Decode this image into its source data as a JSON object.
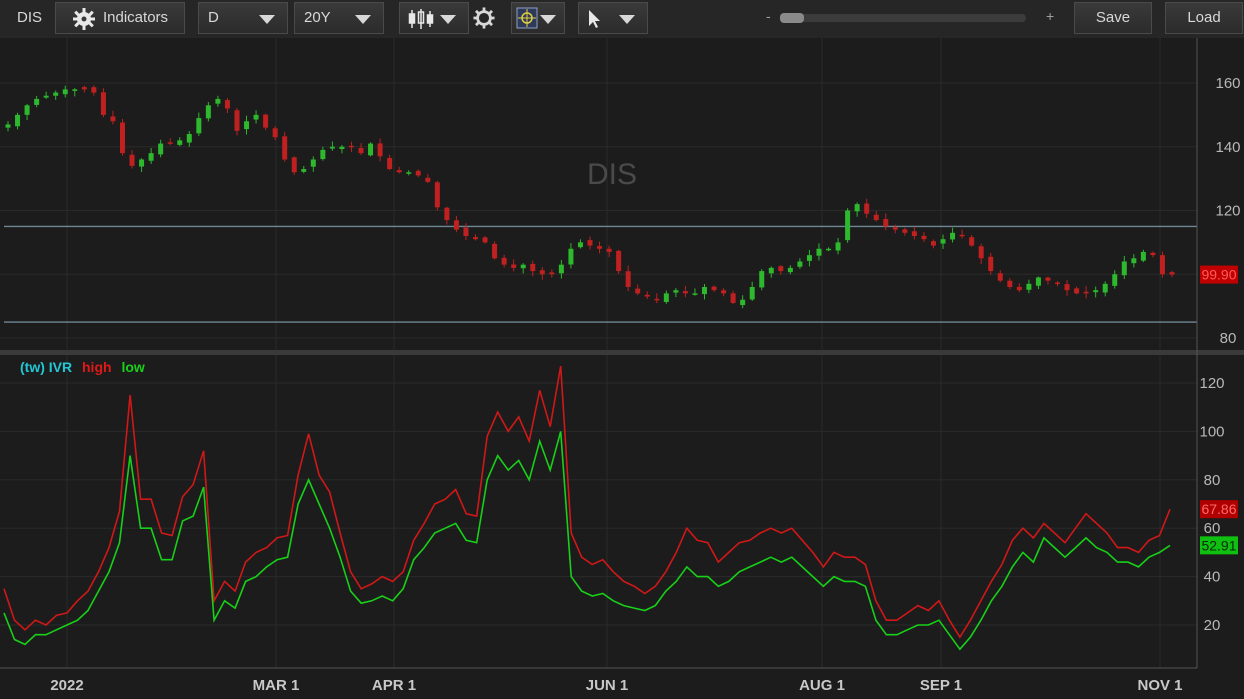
{
  "toolbar": {
    "symbol": "DIS",
    "indicators_label": "Indicators",
    "period": "D",
    "range": "20Y",
    "zoom_minus": "-",
    "zoom_plus": "+",
    "save_label": "Save",
    "load_label": "Load",
    "zoom_level": 0.03
  },
  "colors": {
    "background": "#1c1c1c",
    "up_candle": "#2db82d",
    "down_candle": "#c02020",
    "ivr_label": "#22c7d6",
    "high_line": "#d01818",
    "low_line": "#18d018",
    "hline": "#6f8793"
  },
  "chart_data": [
    {
      "type": "candlestick",
      "watermark": "DIS",
      "y_ticks": [
        80,
        100,
        120,
        140,
        160
      ],
      "y_tick_labels": [
        "80",
        "",
        "120",
        "140",
        "160"
      ],
      "ylim": [
        77,
        168
      ],
      "last_price": 99.9,
      "last_price_label": "99.90",
      "horizontal_lines": [
        115,
        85
      ],
      "x_ticks": [
        "2022",
        "MAR 1",
        "APR 1",
        "JUN 1",
        "AUG 1",
        "SEP 1",
        "NOV 1"
      ],
      "close_series": [
        147,
        150,
        153,
        155,
        156,
        157,
        158,
        158,
        158,
        157,
        150,
        148,
        138,
        134,
        136,
        138,
        141,
        141,
        142,
        144,
        149,
        153,
        155,
        152,
        145,
        148,
        150,
        146,
        143,
        136,
        132,
        133,
        136,
        139,
        140,
        140,
        140,
        138,
        141,
        137,
        133,
        132,
        132,
        131,
        129,
        121,
        117,
        114,
        112,
        111,
        110,
        105,
        103,
        102,
        103,
        101,
        100,
        100,
        103,
        108,
        110,
        109,
        108,
        107,
        101,
        96,
        94,
        93,
        92,
        94,
        95,
        94,
        94,
        96,
        95,
        94,
        91,
        92,
        96,
        101,
        102,
        101,
        102,
        104,
        106,
        108,
        108,
        110,
        120,
        122,
        119,
        117,
        115,
        114,
        113,
        112,
        111,
        109,
        111,
        113,
        112,
        109,
        105,
        101,
        98,
        96,
        95,
        97,
        99,
        98,
        97,
        95,
        94,
        94,
        95,
        97,
        100,
        104,
        105,
        107,
        106,
        100,
        99.9
      ],
      "days_per_point": 2.5
    },
    {
      "type": "line",
      "legend": [
        "(tw) IVR",
        "high",
        "low"
      ],
      "y_ticks": [
        20,
        40,
        60,
        80,
        100,
        120
      ],
      "ylim": [
        3,
        130
      ],
      "series": [
        {
          "name": "high",
          "last_label": "67.86",
          "values": [
            35,
            22,
            18,
            22,
            20,
            24,
            25,
            30,
            34,
            42,
            52,
            67,
            115,
            72,
            72,
            58,
            57,
            73,
            78,
            92,
            30,
            38,
            34,
            46,
            50,
            52,
            56,
            57,
            82,
            99,
            82,
            75,
            58,
            42,
            35,
            37,
            40,
            38,
            42,
            55,
            62,
            70,
            72,
            76,
            66,
            65,
            98,
            108,
            100,
            106,
            96,
            117,
            102,
            127,
            58,
            48,
            45,
            47,
            42,
            38,
            36,
            33,
            36,
            42,
            50,
            60,
            55,
            54,
            46,
            50,
            54,
            55,
            58,
            60,
            58,
            60,
            55,
            50,
            44,
            50,
            48,
            48,
            45,
            30,
            22,
            22,
            25,
            28,
            26,
            30,
            22,
            15,
            22,
            30,
            38,
            45,
            55,
            60,
            56,
            62,
            58,
            54,
            60,
            66,
            62,
            58,
            52,
            52,
            50,
            55,
            57,
            67.86
          ]
        },
        {
          "name": "low",
          "last_label": "52.91",
          "values": [
            25,
            14,
            12,
            16,
            16,
            18,
            20,
            22,
            26,
            34,
            42,
            54,
            90,
            60,
            60,
            47,
            47,
            63,
            65,
            77,
            22,
            30,
            27,
            38,
            40,
            44,
            47,
            48,
            70,
            80,
            70,
            60,
            48,
            34,
            29,
            30,
            32,
            30,
            35,
            47,
            52,
            58,
            60,
            62,
            55,
            54,
            80,
            90,
            84,
            88,
            80,
            96,
            84,
            100,
            40,
            34,
            32,
            33,
            30,
            28,
            27,
            26,
            28,
            34,
            38,
            44,
            40,
            40,
            36,
            38,
            42,
            44,
            46,
            48,
            46,
            48,
            44,
            40,
            36,
            40,
            38,
            38,
            36,
            22,
            16,
            16,
            18,
            20,
            20,
            22,
            16,
            10,
            15,
            22,
            30,
            36,
            44,
            50,
            46,
            56,
            52,
            48,
            52,
            56,
            52,
            50,
            46,
            46,
            44,
            48,
            50,
            52.91
          ]
        }
      ]
    }
  ]
}
